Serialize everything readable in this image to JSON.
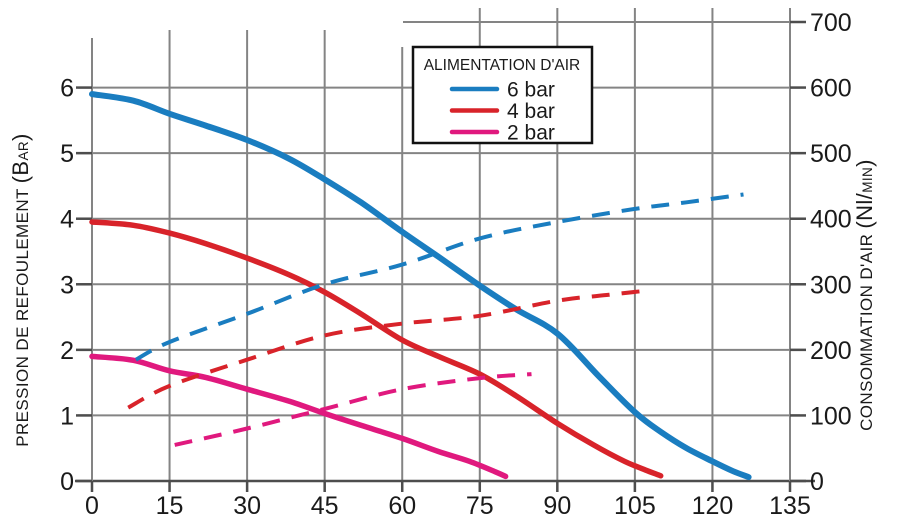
{
  "chart_data": {
    "type": "line",
    "background": "#ffffff",
    "grid_color": "#848484",
    "axis_color": "#4d4d4d",
    "text_color": "#1a1a1a",
    "x_axis": {
      "min": 0,
      "max": 135,
      "ticks": [
        0,
        15,
        30,
        45,
        60,
        75,
        90,
        105,
        120,
        135
      ]
    },
    "y_left": {
      "label": "PRESSION DE REFOULEMENT (BAR)",
      "label_parts": [
        {
          "text": "PRESSION DE REFOULEMENT ",
          "sz": "base"
        },
        {
          "text": "(B",
          "sz": "big"
        },
        {
          "text": "AR",
          "sz": "small"
        },
        {
          "text": ")",
          "sz": "big"
        }
      ],
      "min": 0,
      "max": 7,
      "ticks": [
        0,
        1,
        2,
        3,
        4,
        5,
        6
      ]
    },
    "y_right": {
      "label": "CONSOMMATION D'AIR (Nl/MIN)",
      "label_parts": [
        {
          "text": "CONSOMMATION D'AIR ",
          "sz": "base"
        },
        {
          "text": "(Nl/",
          "sz": "big"
        },
        {
          "text": "MIN",
          "sz": "small"
        },
        {
          "text": ")",
          "sz": "big"
        }
      ],
      "min": 0,
      "max": 700,
      "ticks": [
        0,
        100,
        200,
        300,
        400,
        500,
        600,
        700
      ]
    },
    "legend": {
      "title": "ALIMENTATION D'AIR",
      "entries": [
        {
          "label": "6 bar",
          "color": "#1a7dc0"
        },
        {
          "label": "4 bar",
          "color": "#d8232a"
        },
        {
          "label": "2 bar",
          "color": "#e0197e"
        }
      ]
    },
    "series": [
      {
        "name": "6 bar - pression de refoulement",
        "legend": "6 bar",
        "color": "#1a7dc0",
        "style": "solid",
        "axis": "left",
        "width": 6,
        "points": [
          [
            0,
            5.9
          ],
          [
            8,
            5.8
          ],
          [
            15,
            5.6
          ],
          [
            22,
            5.42
          ],
          [
            30,
            5.2
          ],
          [
            38,
            4.92
          ],
          [
            45,
            4.6
          ],
          [
            52,
            4.25
          ],
          [
            60,
            3.8
          ],
          [
            67,
            3.42
          ],
          [
            75,
            2.98
          ],
          [
            82,
            2.62
          ],
          [
            90,
            2.25
          ],
          [
            98,
            1.6
          ],
          [
            105,
            1.05
          ],
          [
            110,
            0.75
          ],
          [
            115,
            0.5
          ],
          [
            120,
            0.3
          ],
          [
            124,
            0.15
          ],
          [
            127,
            0.06
          ]
        ]
      },
      {
        "name": "4 bar - pression de refoulement",
        "legend": "4 bar",
        "color": "#d8232a",
        "style": "solid",
        "axis": "left",
        "width": 5.5,
        "points": [
          [
            0,
            3.95
          ],
          [
            8,
            3.9
          ],
          [
            15,
            3.78
          ],
          [
            22,
            3.62
          ],
          [
            30,
            3.4
          ],
          [
            38,
            3.15
          ],
          [
            45,
            2.88
          ],
          [
            52,
            2.55
          ],
          [
            60,
            2.15
          ],
          [
            67,
            1.9
          ],
          [
            75,
            1.63
          ],
          [
            82,
            1.3
          ],
          [
            90,
            0.88
          ],
          [
            97,
            0.55
          ],
          [
            103,
            0.3
          ],
          [
            107,
            0.17
          ],
          [
            110,
            0.08
          ]
        ]
      },
      {
        "name": "2 bar - pression de refoulement",
        "legend": "2 bar",
        "color": "#e0197e",
        "style": "solid",
        "axis": "left",
        "width": 5.5,
        "points": [
          [
            0,
            1.9
          ],
          [
            8,
            1.84
          ],
          [
            15,
            1.68
          ],
          [
            22,
            1.58
          ],
          [
            30,
            1.4
          ],
          [
            38,
            1.22
          ],
          [
            45,
            1.03
          ],
          [
            52,
            0.85
          ],
          [
            60,
            0.65
          ],
          [
            67,
            0.45
          ],
          [
            73,
            0.3
          ],
          [
            78,
            0.14
          ],
          [
            80,
            0.07
          ]
        ]
      },
      {
        "name": "6 bar - consommation d'air",
        "legend": "6 bar",
        "color": "#1a7dc0",
        "style": "dashed",
        "axis": "right",
        "width": 4,
        "points": [
          [
            8.5,
            185
          ],
          [
            15,
            212
          ],
          [
            30,
            255
          ],
          [
            45,
            300
          ],
          [
            60,
            330
          ],
          [
            75,
            370
          ],
          [
            90,
            395
          ],
          [
            105,
            415
          ],
          [
            115,
            425
          ],
          [
            126,
            437
          ]
        ]
      },
      {
        "name": "4 bar - consommation d'air",
        "legend": "4 bar",
        "color": "#d8232a",
        "style": "dashed",
        "axis": "right",
        "width": 4,
        "points": [
          [
            7,
            112
          ],
          [
            15,
            145
          ],
          [
            30,
            185
          ],
          [
            45,
            222
          ],
          [
            60,
            240
          ],
          [
            75,
            252
          ],
          [
            90,
            275
          ],
          [
            100,
            284
          ],
          [
            107,
            290
          ]
        ]
      },
      {
        "name": "2 bar - consommation d'air",
        "legend": "2 bar",
        "color": "#e0197e",
        "style": "dashed",
        "axis": "right",
        "width": 4,
        "points": [
          [
            16,
            55
          ],
          [
            30,
            80
          ],
          [
            45,
            110
          ],
          [
            60,
            140
          ],
          [
            75,
            157
          ],
          [
            85,
            163
          ]
        ]
      }
    ]
  }
}
